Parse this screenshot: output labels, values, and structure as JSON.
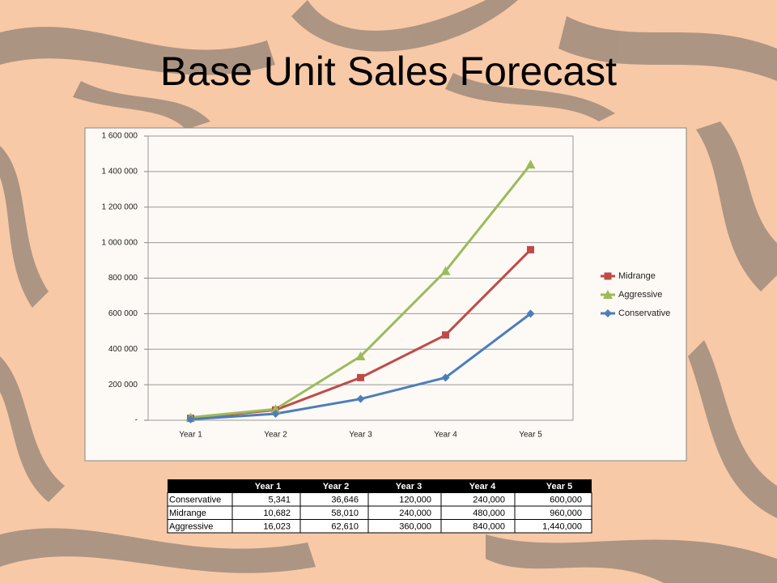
{
  "chart_data": {
    "type": "line",
    "title": "Base Unit Sales Forecast",
    "categories": [
      "Year 1",
      "Year 2",
      "Year 3",
      "Year 4",
      "Year 5"
    ],
    "series": [
      {
        "name": "Midrange",
        "color": "#be4b48",
        "marker": "square",
        "values": [
          10682,
          58010,
          240000,
          480000,
          960000
        ]
      },
      {
        "name": "Aggressive",
        "color": "#9bbb59",
        "marker": "triangle",
        "values": [
          16023,
          62610,
          360000,
          840000,
          1440000
        ]
      },
      {
        "name": "Conservative",
        "color": "#4a7ebb",
        "marker": "diamond",
        "values": [
          5341,
          36646,
          120000,
          240000,
          600000
        ]
      }
    ],
    "ylim": [
      0,
      1600000
    ],
    "yticks": [
      {
        "value": 0,
        "label": "-"
      },
      {
        "value": 200000,
        "label": "200 000"
      },
      {
        "value": 400000,
        "label": "400 000"
      },
      {
        "value": 600000,
        "label": "600 000"
      },
      {
        "value": 800000,
        "label": "800 000"
      },
      {
        "value": 1000000,
        "label": "1 000 000"
      },
      {
        "value": 1200000,
        "label": "1 200 000"
      },
      {
        "value": 1400000,
        "label": "1 400 000"
      },
      {
        "value": 1600000,
        "label": "1 600 000"
      }
    ],
    "grid": true,
    "legend": "right"
  },
  "table": {
    "header": [
      "Year 1",
      "Year 2",
      "Year 3",
      "Year 4",
      "Year 5"
    ],
    "rows": [
      [
        "Conservative",
        "5,341",
        "36,646",
        "120,000",
        "240,000",
        "600,000"
      ],
      [
        "Midrange",
        "10,682",
        "58,010",
        "240,000",
        "480,000",
        "960,000"
      ],
      [
        "Aggressive",
        "16,023",
        "62,610",
        "360,000",
        "840,000",
        "1,440,000"
      ]
    ]
  }
}
